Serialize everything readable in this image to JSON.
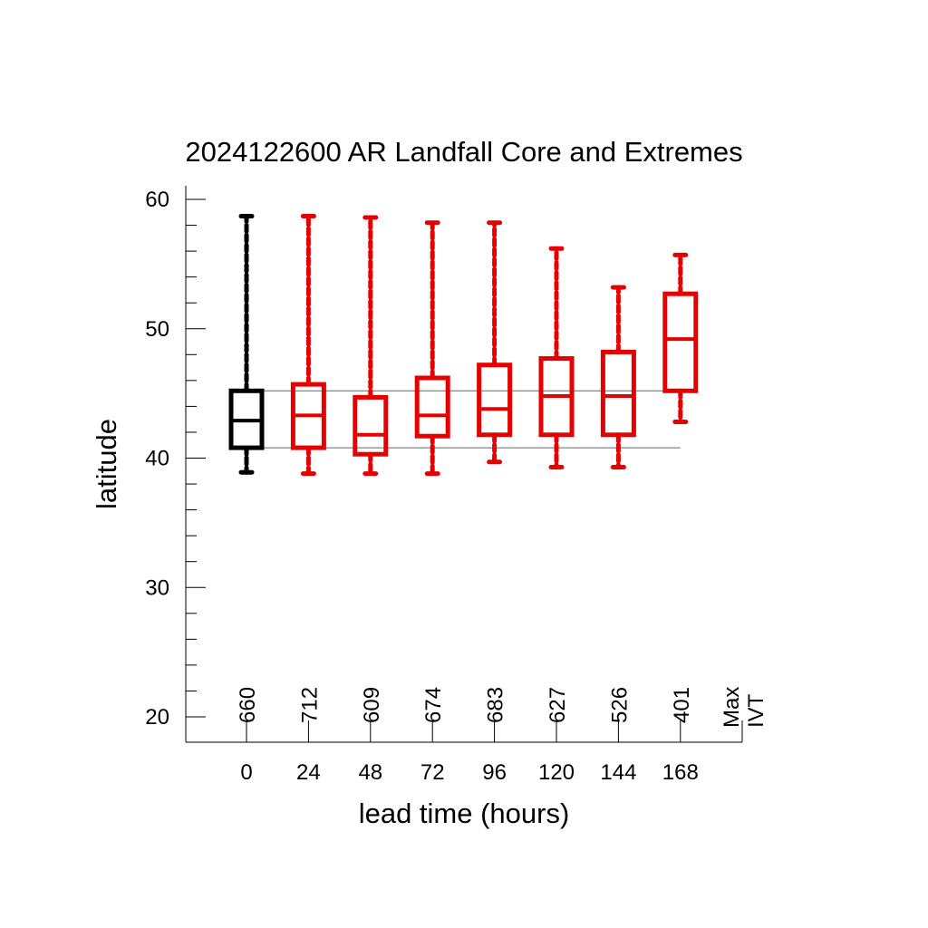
{
  "chart_data": {
    "type": "box",
    "title": "2024122600 AR Landfall Core and Extremes",
    "xlabel": "lead time (hours)",
    "ylabel": "latitude",
    "ylim": [
      18,
      61
    ],
    "yticks": [
      "20",
      "30",
      "40",
      "50",
      "60"
    ],
    "x_label_right": "Max IVT",
    "reference_lines": {
      "upper": 45.2,
      "lower": 40.8
    },
    "series": [
      {
        "lead": "0",
        "count": "660",
        "color": "#000000",
        "min": 38.9,
        "q1": 40.8,
        "median": 42.9,
        "q3": 45.2,
        "max": 58.7
      },
      {
        "lead": "24",
        "count": "712",
        "color": "#e60000",
        "min": 38.8,
        "q1": 40.8,
        "median": 43.3,
        "q3": 45.7,
        "max": 58.7
      },
      {
        "lead": "48",
        "count": "609",
        "color": "#e60000",
        "min": 38.8,
        "q1": 40.3,
        "median": 41.8,
        "q3": 44.7,
        "max": 58.6
      },
      {
        "lead": "72",
        "count": "674",
        "color": "#e60000",
        "min": 38.8,
        "q1": 41.7,
        "median": 43.3,
        "q3": 46.2,
        "max": 58.2
      },
      {
        "lead": "96",
        "count": "683",
        "color": "#e60000",
        "min": 39.7,
        "q1": 41.8,
        "median": 43.8,
        "q3": 47.2,
        "max": 58.2
      },
      {
        "lead": "120",
        "count": "627",
        "color": "#e60000",
        "min": 39.3,
        "q1": 41.8,
        "median": 44.8,
        "q3": 47.7,
        "max": 56.2
      },
      {
        "lead": "144",
        "count": "526",
        "color": "#e60000",
        "min": 39.3,
        "q1": 41.8,
        "median": 44.8,
        "q3": 48.2,
        "max": 53.2
      },
      {
        "lead": "168",
        "count": "401",
        "color": "#e60000",
        "min": 42.8,
        "q1": 45.2,
        "median": 49.2,
        "q3": 52.7,
        "max": 55.7
      }
    ]
  }
}
